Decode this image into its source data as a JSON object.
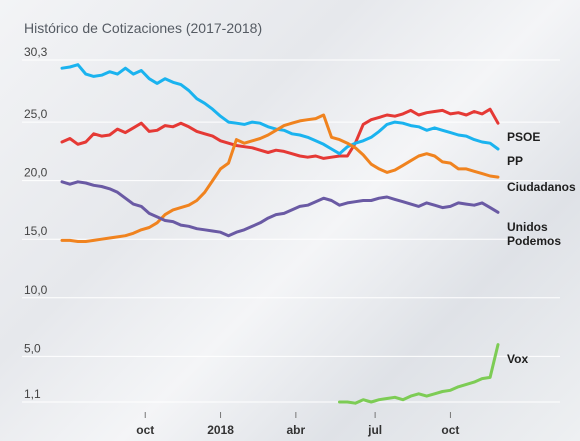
{
  "chart_data": {
    "type": "line",
    "title": "Histórico de Cotizaciones (2017-2018)",
    "xlabel": "",
    "ylabel": "",
    "ylim": [
      1.1,
      30.3
    ],
    "y_ticks": [
      "30,3",
      "25,0",
      "20,0",
      "15,0",
      "10,0",
      "5,0",
      "1,1"
    ],
    "y_tick_values": [
      30.3,
      25,
      20,
      15,
      10,
      5,
      1.1
    ],
    "x_range": [
      0,
      55
    ],
    "x_ticks": [
      {
        "label": "oct",
        "x": 10.5
      },
      {
        "label": "2018",
        "x": 20
      },
      {
        "label": "abr",
        "x": 29.5
      },
      {
        "label": "jul",
        "x": 39.5
      },
      {
        "label": "oct",
        "x": 49
      }
    ],
    "grid": true,
    "series": [
      {
        "name": "PSOE",
        "color": "#e53935",
        "x": [
          0,
          1,
          2,
          3,
          4,
          5,
          6,
          7,
          8,
          9,
          10,
          11,
          12,
          13,
          14,
          15,
          16,
          17,
          18,
          19,
          20,
          21,
          22,
          23,
          24,
          25,
          26,
          27,
          28,
          29,
          30,
          31,
          32,
          33,
          34,
          35,
          36,
          37,
          38,
          39,
          40,
          41,
          42,
          43,
          44,
          45,
          46,
          47,
          48,
          49,
          50,
          51,
          52,
          53,
          54,
          55
        ],
        "values": [
          23.3,
          23.6,
          23.1,
          23.3,
          24.0,
          23.8,
          23.9,
          24.4,
          24.1,
          24.5,
          24.9,
          24.2,
          24.3,
          24.7,
          24.6,
          24.9,
          24.6,
          24.2,
          24.0,
          23.8,
          23.4,
          23.2,
          23.0,
          22.9,
          22.8,
          22.6,
          22.4,
          22.6,
          22.5,
          22.3,
          22.1,
          22.0,
          22.1,
          21.9,
          22.0,
          22.1,
          22.1,
          23.2,
          24.8,
          25.2,
          25.4,
          25.6,
          25.5,
          25.7,
          26.0,
          25.6,
          25.8,
          25.9,
          26.0,
          25.7,
          25.8,
          25.6,
          25.9,
          25.7,
          26.1,
          24.9
        ]
      },
      {
        "name": "PP",
        "color": "#1ab3ef",
        "x": [
          0,
          1,
          2,
          3,
          4,
          5,
          6,
          7,
          8,
          9,
          10,
          11,
          12,
          13,
          14,
          15,
          16,
          17,
          18,
          19,
          20,
          21,
          22,
          23,
          24,
          25,
          26,
          27,
          28,
          29,
          30,
          31,
          32,
          33,
          34,
          35,
          36,
          37,
          38,
          39,
          40,
          41,
          42,
          43,
          44,
          45,
          46,
          47,
          48,
          49,
          50,
          51,
          52,
          53,
          54,
          55
        ],
        "values": [
          29.6,
          29.7,
          29.9,
          29.1,
          28.9,
          29.0,
          29.3,
          29.1,
          29.6,
          29.1,
          29.4,
          28.7,
          28.3,
          28.7,
          28.4,
          28.2,
          27.7,
          27.0,
          26.6,
          26.1,
          25.5,
          25.0,
          24.9,
          24.8,
          25.0,
          24.9,
          24.6,
          24.4,
          24.3,
          24.0,
          23.9,
          23.7,
          23.4,
          23.1,
          22.7,
          22.3,
          22.9,
          23.2,
          23.4,
          23.7,
          24.2,
          24.8,
          25.0,
          24.9,
          24.7,
          24.6,
          24.3,
          24.5,
          24.3,
          24.1,
          23.9,
          23.8,
          23.5,
          23.3,
          23.2,
          22.7
        ]
      },
      {
        "name": "Ciudadanos",
        "color": "#f0831f",
        "x": [
          0,
          1,
          2,
          3,
          4,
          5,
          6,
          7,
          8,
          9,
          10,
          11,
          12,
          13,
          14,
          15,
          16,
          17,
          18,
          19,
          20,
          21,
          22,
          23,
          24,
          25,
          26,
          27,
          28,
          29,
          30,
          31,
          32,
          33,
          34,
          35,
          36,
          37,
          38,
          39,
          40,
          41,
          42,
          43,
          44,
          45,
          46,
          47,
          48,
          49,
          50,
          51,
          52,
          53,
          54,
          55
        ],
        "values": [
          14.9,
          14.9,
          14.8,
          14.8,
          14.9,
          15.0,
          15.1,
          15.2,
          15.3,
          15.5,
          15.8,
          16.0,
          16.4,
          17.1,
          17.5,
          17.7,
          17.9,
          18.3,
          19.0,
          20.0,
          21.0,
          21.5,
          23.5,
          23.2,
          23.4,
          23.6,
          23.9,
          24.3,
          24.7,
          24.9,
          25.1,
          25.2,
          25.3,
          25.6,
          23.7,
          23.5,
          23.2,
          22.8,
          22.2,
          21.4,
          21.0,
          20.7,
          20.9,
          21.3,
          21.7,
          22.1,
          22.3,
          22.1,
          21.6,
          21.5,
          21.0,
          21.0,
          20.8,
          20.6,
          20.4,
          20.3
        ]
      },
      {
        "name": "Unidos Podemos",
        "color": "#6a5aa4",
        "x": [
          0,
          1,
          2,
          3,
          4,
          5,
          6,
          7,
          8,
          9,
          10,
          11,
          12,
          13,
          14,
          15,
          16,
          17,
          18,
          19,
          20,
          21,
          22,
          23,
          24,
          25,
          26,
          27,
          28,
          29,
          30,
          31,
          32,
          33,
          34,
          35,
          36,
          37,
          38,
          39,
          40,
          41,
          42,
          43,
          44,
          45,
          46,
          47,
          48,
          49,
          50,
          51,
          52,
          53,
          54,
          55
        ],
        "values": [
          19.9,
          19.7,
          19.9,
          19.8,
          19.6,
          19.5,
          19.3,
          19.0,
          18.5,
          18.0,
          17.8,
          17.2,
          16.9,
          16.6,
          16.5,
          16.2,
          16.1,
          15.9,
          15.8,
          15.7,
          15.6,
          15.3,
          15.6,
          15.8,
          16.1,
          16.4,
          16.8,
          17.1,
          17.2,
          17.5,
          17.8,
          17.9,
          18.2,
          18.5,
          18.3,
          17.9,
          18.1,
          18.2,
          18.3,
          18.3,
          18.5,
          18.6,
          18.4,
          18.2,
          18.0,
          17.8,
          18.1,
          17.9,
          17.7,
          17.8,
          18.1,
          18.0,
          17.9,
          18.1,
          17.7,
          17.3
        ]
      },
      {
        "name": "Vox",
        "color": "#7dcc55",
        "x": [
          35,
          36,
          37,
          38,
          39,
          40,
          41,
          42,
          43,
          44,
          45,
          46,
          47,
          48,
          49,
          50,
          51,
          52,
          53,
          54,
          55
        ],
        "values": [
          1.1,
          1.1,
          1.0,
          1.3,
          1.1,
          1.3,
          1.4,
          1.5,
          1.3,
          1.6,
          1.8,
          1.6,
          1.8,
          2.0,
          2.1,
          2.4,
          2.6,
          2.8,
          3.1,
          3.2,
          6.0
        ]
      }
    ]
  }
}
